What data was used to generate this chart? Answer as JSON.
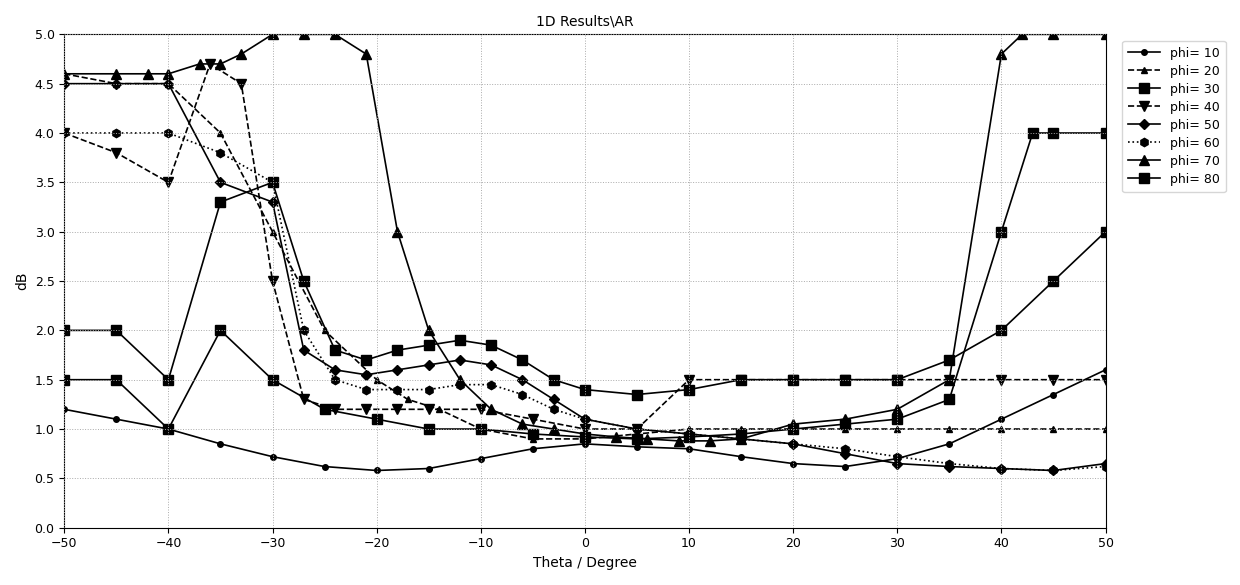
{
  "title": "1D Results\\AR",
  "xlabel": "Theta / Degree",
  "ylabel": "dB",
  "xlim": [
    -50,
    50
  ],
  "ylim": [
    0,
    5
  ],
  "yticks": [
    0,
    0.5,
    1.0,
    1.5,
    2.0,
    2.5,
    3.0,
    3.5,
    4.0,
    4.5,
    5.0
  ],
  "xticks": [
    -50,
    -40,
    -30,
    -20,
    -10,
    0,
    10,
    20,
    30,
    40,
    50
  ],
  "figsize": [
    12.4,
    5.85
  ],
  "dpi": 100,
  "series": [
    {
      "label": "phi= 10",
      "marker": "o",
      "linestyle": "-",
      "markersize": 5,
      "theta": [
        -50,
        -45,
        -40,
        -35,
        -30,
        -25,
        -20,
        -15,
        -10,
        -5,
        0,
        5,
        10,
        15,
        20,
        25,
        30,
        35,
        40,
        45,
        50
      ],
      "ar": [
        1.2,
        1.1,
        1.0,
        0.85,
        0.72,
        0.62,
        0.58,
        0.6,
        0.7,
        0.8,
        0.85,
        0.82,
        0.8,
        0.72,
        0.65,
        0.62,
        0.7,
        0.85,
        1.1,
        1.35,
        1.6
      ]
    },
    {
      "label": "phi= 20",
      "marker": "^",
      "linestyle": "--",
      "markersize": 5,
      "theta": [
        -50,
        -45,
        -40,
        -35,
        -30,
        -25,
        -20,
        -17,
        -14,
        -10,
        -5,
        0,
        5,
        10,
        15,
        20,
        25,
        30,
        35,
        40,
        45,
        50
      ],
      "ar": [
        4.6,
        4.5,
        4.5,
        4.0,
        3.0,
        2.0,
        1.5,
        1.3,
        1.2,
        1.0,
        0.9,
        0.9,
        0.95,
        1.0,
        1.0,
        1.0,
        1.0,
        1.0,
        1.0,
        1.0,
        1.0,
        1.0
      ]
    },
    {
      "label": "phi= 30",
      "marker": "s",
      "linestyle": "-",
      "markersize": 7,
      "theta": [
        -50,
        -45,
        -40,
        -35,
        -30,
        -27,
        -24,
        -21,
        -18,
        -15,
        -12,
        -9,
        -6,
        -3,
        0,
        5,
        10,
        15,
        20,
        25,
        30,
        35,
        40,
        45,
        50
      ],
      "ar": [
        2.0,
        2.0,
        1.5,
        3.3,
        3.5,
        2.5,
        1.8,
        1.7,
        1.8,
        1.85,
        1.9,
        1.85,
        1.7,
        1.5,
        1.4,
        1.35,
        1.4,
        1.5,
        1.5,
        1.5,
        1.5,
        1.7,
        2.0,
        2.5,
        3.0
      ]
    },
    {
      "label": "phi= 40",
      "marker": "v",
      "linestyle": "--",
      "markersize": 7,
      "theta": [
        -50,
        -45,
        -40,
        -36,
        -33,
        -30,
        -27,
        -24,
        -21,
        -18,
        -15,
        -10,
        -5,
        0,
        5,
        10,
        15,
        20,
        25,
        30,
        35,
        40,
        45,
        50
      ],
      "ar": [
        4.0,
        3.8,
        3.5,
        4.7,
        4.5,
        2.5,
        1.3,
        1.2,
        1.2,
        1.2,
        1.2,
        1.2,
        1.1,
        1.0,
        1.0,
        1.5,
        1.5,
        1.5,
        1.5,
        1.5,
        1.5,
        1.5,
        1.5,
        1.5
      ]
    },
    {
      "label": "phi= 50",
      "marker": "D",
      "linestyle": "-",
      "markersize": 5,
      "theta": [
        -50,
        -45,
        -40,
        -35,
        -30,
        -27,
        -24,
        -21,
        -18,
        -15,
        -12,
        -9,
        -6,
        -3,
        0,
        5,
        10,
        15,
        20,
        25,
        30,
        35,
        40,
        45,
        50
      ],
      "ar": [
        4.5,
        4.5,
        4.5,
        3.5,
        3.3,
        1.8,
        1.6,
        1.55,
        1.6,
        1.65,
        1.7,
        1.65,
        1.5,
        1.3,
        1.1,
        1.0,
        0.95,
        0.9,
        0.85,
        0.75,
        0.65,
        0.62,
        0.6,
        0.58,
        0.65
      ]
    },
    {
      "label": "phi= 60",
      "marker": "h",
      "linestyle": ":",
      "markersize": 6,
      "theta": [
        -50,
        -45,
        -40,
        -35,
        -30,
        -27,
        -24,
        -21,
        -18,
        -15,
        -12,
        -9,
        -6,
        -3,
        0,
        5,
        10,
        15,
        20,
        25,
        30,
        35,
        40,
        45,
        50
      ],
      "ar": [
        4.0,
        4.0,
        4.0,
        3.8,
        3.5,
        2.0,
        1.5,
        1.4,
        1.4,
        1.4,
        1.45,
        1.45,
        1.35,
        1.2,
        1.1,
        1.0,
        0.95,
        0.9,
        0.85,
        0.8,
        0.72,
        0.65,
        0.6,
        0.58,
        0.62
      ]
    },
    {
      "label": "phi= 70",
      "marker": "^",
      "linestyle": "-",
      "markersize": 7,
      "theta": [
        -50,
        -45,
        -42,
        -40,
        -37,
        -35,
        -33,
        -30,
        -27,
        -24,
        -21,
        -18,
        -15,
        -12,
        -9,
        -6,
        -3,
        0,
        3,
        6,
        9,
        12,
        15,
        20,
        25,
        30,
        35,
        40,
        42,
        45,
        50
      ],
      "ar": [
        4.6,
        4.6,
        4.6,
        4.6,
        4.7,
        4.7,
        4.8,
        5.0,
        5.0,
        5.0,
        4.8,
        3.0,
        2.0,
        1.5,
        1.2,
        1.05,
        1.0,
        0.95,
        0.92,
        0.9,
        0.88,
        0.88,
        0.9,
        1.05,
        1.1,
        1.2,
        1.5,
        4.8,
        5.0,
        5.0,
        5.0
      ]
    },
    {
      "label": "phi= 80",
      "marker": "s",
      "linestyle": "-",
      "markersize": 7,
      "theta": [
        -50,
        -45,
        -40,
        -35,
        -30,
        -25,
        -20,
        -15,
        -10,
        -5,
        0,
        5,
        10,
        15,
        20,
        25,
        30,
        35,
        40,
        43,
        45,
        50
      ],
      "ar": [
        1.5,
        1.5,
        1.0,
        2.0,
        1.5,
        1.2,
        1.1,
        1.0,
        1.0,
        0.95,
        0.92,
        0.9,
        0.92,
        0.95,
        1.0,
        1.05,
        1.1,
        1.3,
        3.0,
        4.0,
        4.0,
        4.0
      ]
    }
  ]
}
